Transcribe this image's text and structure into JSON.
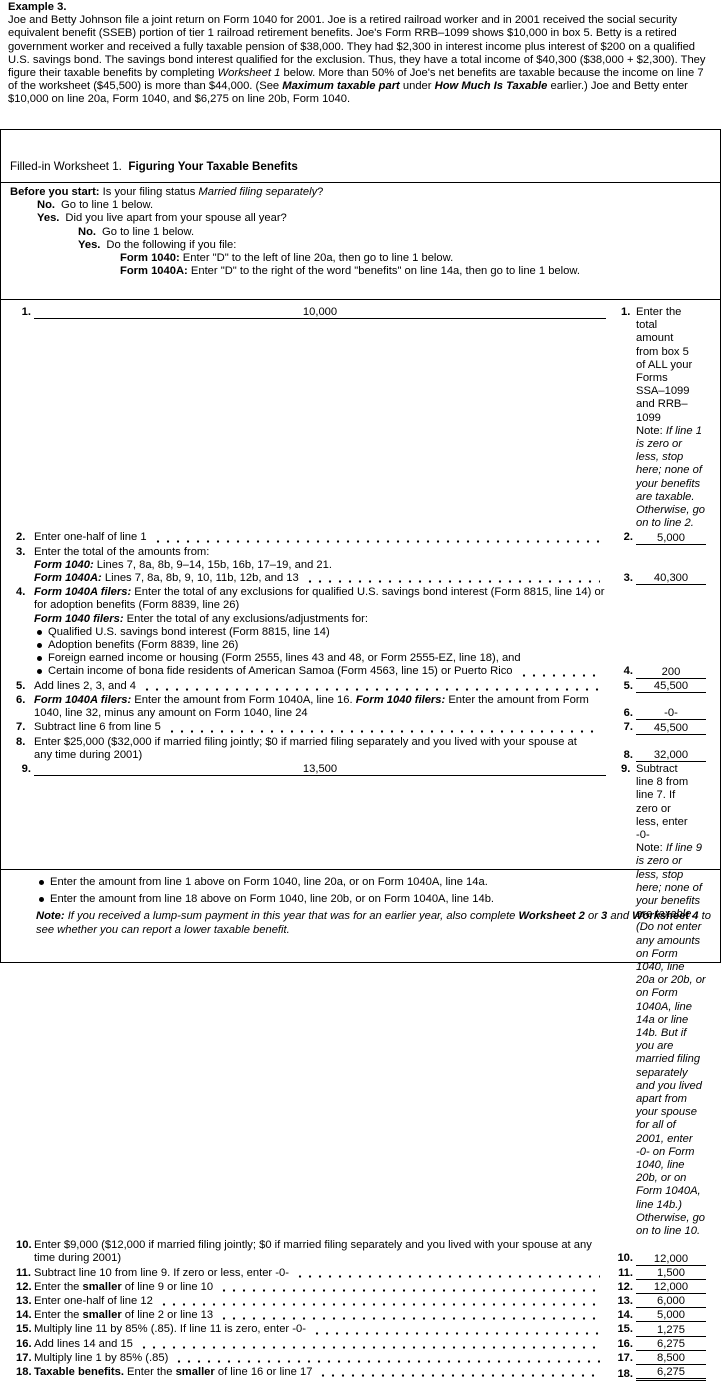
{
  "example": {
    "title": "Example 3.",
    "paragraph": [
      "Joe and Betty Johnson file a joint return on Form 1040 for 2001. Joe is a retired railroad worker and in 2001 received the social security equivalent benefit (SSEB) portion of tier 1 railroad retirement benefits. Joe's Form RRB–1099 shows $10,000 in box 5. Betty is a retired government worker and received a fully taxable pension of $38,000. They had $2,300 in interest income plus interest of $200 on a qualified U.S. savings bond. The savings bond interest qualified for the exclusion. Thus, they have a total income of $40,300 ($38,000 + $2,300). They figure their taxable benefits by completing ",
      "Worksheet 1",
      " below. More than 50% of Joe's net benefits are taxable because the income on line 7 of the worksheet ($45,500) is more than $44,000. (See ",
      "Maximum taxable part",
      " under ",
      "How Much Is Taxable",
      " earlier.) Joe and Betty enter $10,000 on line 20a, Form 1040, and $6,275 on line 20b, Form 1040."
    ]
  },
  "worksheet": {
    "heading_prefix": "Filled-in Worksheet 1.",
    "heading": "Figuring Your Taxable Benefits",
    "before": {
      "question": [
        "Before you start:",
        " Is your filing status ",
        "Married filing separately",
        "?"
      ],
      "no": {
        "label": "No.",
        "text": "Go to line 1 below."
      },
      "yes": {
        "label": "Yes.",
        "text": "Did you live apart from your spouse all year?"
      },
      "yes_no": {
        "label": "No.",
        "text": "Go to line 1 below."
      },
      "yes_yes": {
        "label": "Yes.",
        "text": "Do the following if you file:"
      },
      "form1040": [
        "Form 1040:",
        " Enter \"D\" to the left of line 20a, then go to line 1 below."
      ],
      "form1040a": [
        "Form 1040A:",
        " Enter \"D\" to the right of the word \"benefits\" on line 14a, then go to line 1 below."
      ]
    },
    "lines": [
      {
        "num": "1.",
        "text": [
          "Enter the total amount from box 5 of ALL your Forms SSA–1099 and RRB–1099"
        ],
        "note": [
          "Note:",
          " If line 1 is zero or less, stop here; none of your benefits are taxable. Otherwise, go on to line 2."
        ],
        "box": "1.",
        "value": "10,000"
      },
      {
        "num": "2.",
        "text": [
          "Enter one-half of line 1"
        ],
        "box": "2.",
        "value": "5,000"
      },
      {
        "num": "3.",
        "text": [
          "Enter the total of the amounts from:"
        ],
        "sub": [
          [
            "Form 1040:",
            " Lines 7, 8a, 8b, 9–14, 15b, 16b, 17–19, and 21."
          ],
          [
            "Form 1040A:",
            " Lines 7, 8a, 8b, 9, 10, 11b, 12b, and 13"
          ]
        ],
        "box": "3.",
        "value": "40,300"
      },
      {
        "num": "4.",
        "text": [
          "Form 1040A filers:",
          " Enter the total of any exclusions for qualified U.S. savings bond interest (Form 8815, line 14) or for adoption benefits (Form 8839, line 26)"
        ],
        "sub": [
          [
            "Form 1040 filers:",
            " Enter the total of any exclusions/adjustments for:"
          ]
        ],
        "bullets": [
          "Qualified U.S. savings bond interest (Form 8815, line 14)",
          "Adoption benefits (Form 8839, line 26)",
          "Foreign earned income or housing (Form 2555, lines 43 and 48, or Form 2555-EZ, line 18), and",
          "Certain income of bona fide residents of American Samoa (Form 4563, line 15) or Puerto Rico"
        ],
        "box": "4.",
        "value": "200"
      },
      {
        "num": "5.",
        "text": [
          "Add lines 2, 3, and 4"
        ],
        "box": "5.",
        "value": "45,500"
      },
      {
        "num": "6.",
        "text": [
          "Form 1040A filers:",
          " Enter the amount from Form 1040A, line 16. ",
          "Form 1040 filers:",
          " Enter the amount from Form 1040, line 32, minus any amount on Form 1040, line 24"
        ],
        "box": "6.",
        "value": "-0-"
      },
      {
        "num": "7.",
        "text": [
          "Subtract line 6 from line 5"
        ],
        "box": "7.",
        "value": "45,500"
      },
      {
        "num": "8.",
        "text": [
          "Enter $25,000 ($32,000 if married filing jointly; $0 if married filing separately and you lived with your spouse at any time during 2001)"
        ],
        "box": "8.",
        "value": "32,000"
      },
      {
        "num": "9.",
        "text": [
          "Subtract line 8 from line 7. If zero or less, enter -0-"
        ],
        "note": [
          "Note:",
          " If line 9 is zero or less, stop here; none of your benefits are taxable. (Do not enter any amounts on Form 1040, line 20a or 20b, or on Form 1040A, line 14a or line 14b. But if you are married filing separately and you lived apart from your spouse for all of 2001, enter -0- on Form 1040, line 20b, or on Form 1040A, line 14b.) Otherwise, go on to line 10."
        ],
        "box": "9.",
        "value": "13,500"
      },
      {
        "num": "10.",
        "text": [
          "Enter $9,000 ($12,000 if married filing jointly; $0 if married filing separately and you lived with your spouse at any time during 2001)"
        ],
        "box": "10.",
        "value": "12,000"
      },
      {
        "num": "11.",
        "text": [
          "Subtract line 10 from line 9. If zero or less, enter -0-"
        ],
        "box": "11.",
        "value": "1,500"
      },
      {
        "num": "12.",
        "text": [
          "Enter the ",
          "smaller",
          " of line 9 or line 10"
        ],
        "box": "12.",
        "value": "12,000"
      },
      {
        "num": "13.",
        "text": [
          "Enter one-half of line 12"
        ],
        "box": "13.",
        "value": "6,000"
      },
      {
        "num": "14.",
        "text": [
          "Enter the ",
          "smaller",
          " of line 2 or line 13"
        ],
        "box": "14.",
        "value": "5,000"
      },
      {
        "num": "15.",
        "text": [
          "Multiply line 11 by 85% (.85). If line 11 is zero, enter -0-"
        ],
        "box": "15.",
        "value": "1,275"
      },
      {
        "num": "16.",
        "text": [
          "Add lines 14 and 15"
        ],
        "box": "16.",
        "value": "6,275"
      },
      {
        "num": "17.",
        "text": [
          "Multiply line 1 by 85% (.85)"
        ],
        "box": "17.",
        "value": "8,500"
      },
      {
        "num": "18.",
        "text": [
          "Taxable benefits.",
          " Enter the ",
          "smaller",
          " of line 16 or line 17"
        ],
        "box": "18.",
        "value": "6,275"
      }
    ],
    "footer": {
      "bullets": [
        "Enter the amount from line 1 above on Form 1040, line 20a, or on Form 1040A, line 14a.",
        "Enter the amount from line 18 above on Form 1040, line 20b, or on Form 1040A, line 14b."
      ],
      "note": [
        "Note:",
        " If you received a lump-sum payment in this year that was for an earlier year, also complete ",
        "Worksheet 2",
        " or ",
        "3",
        " and ",
        "Worksheet 4",
        " to see whether you can report a lower taxable benefit."
      ]
    }
  }
}
